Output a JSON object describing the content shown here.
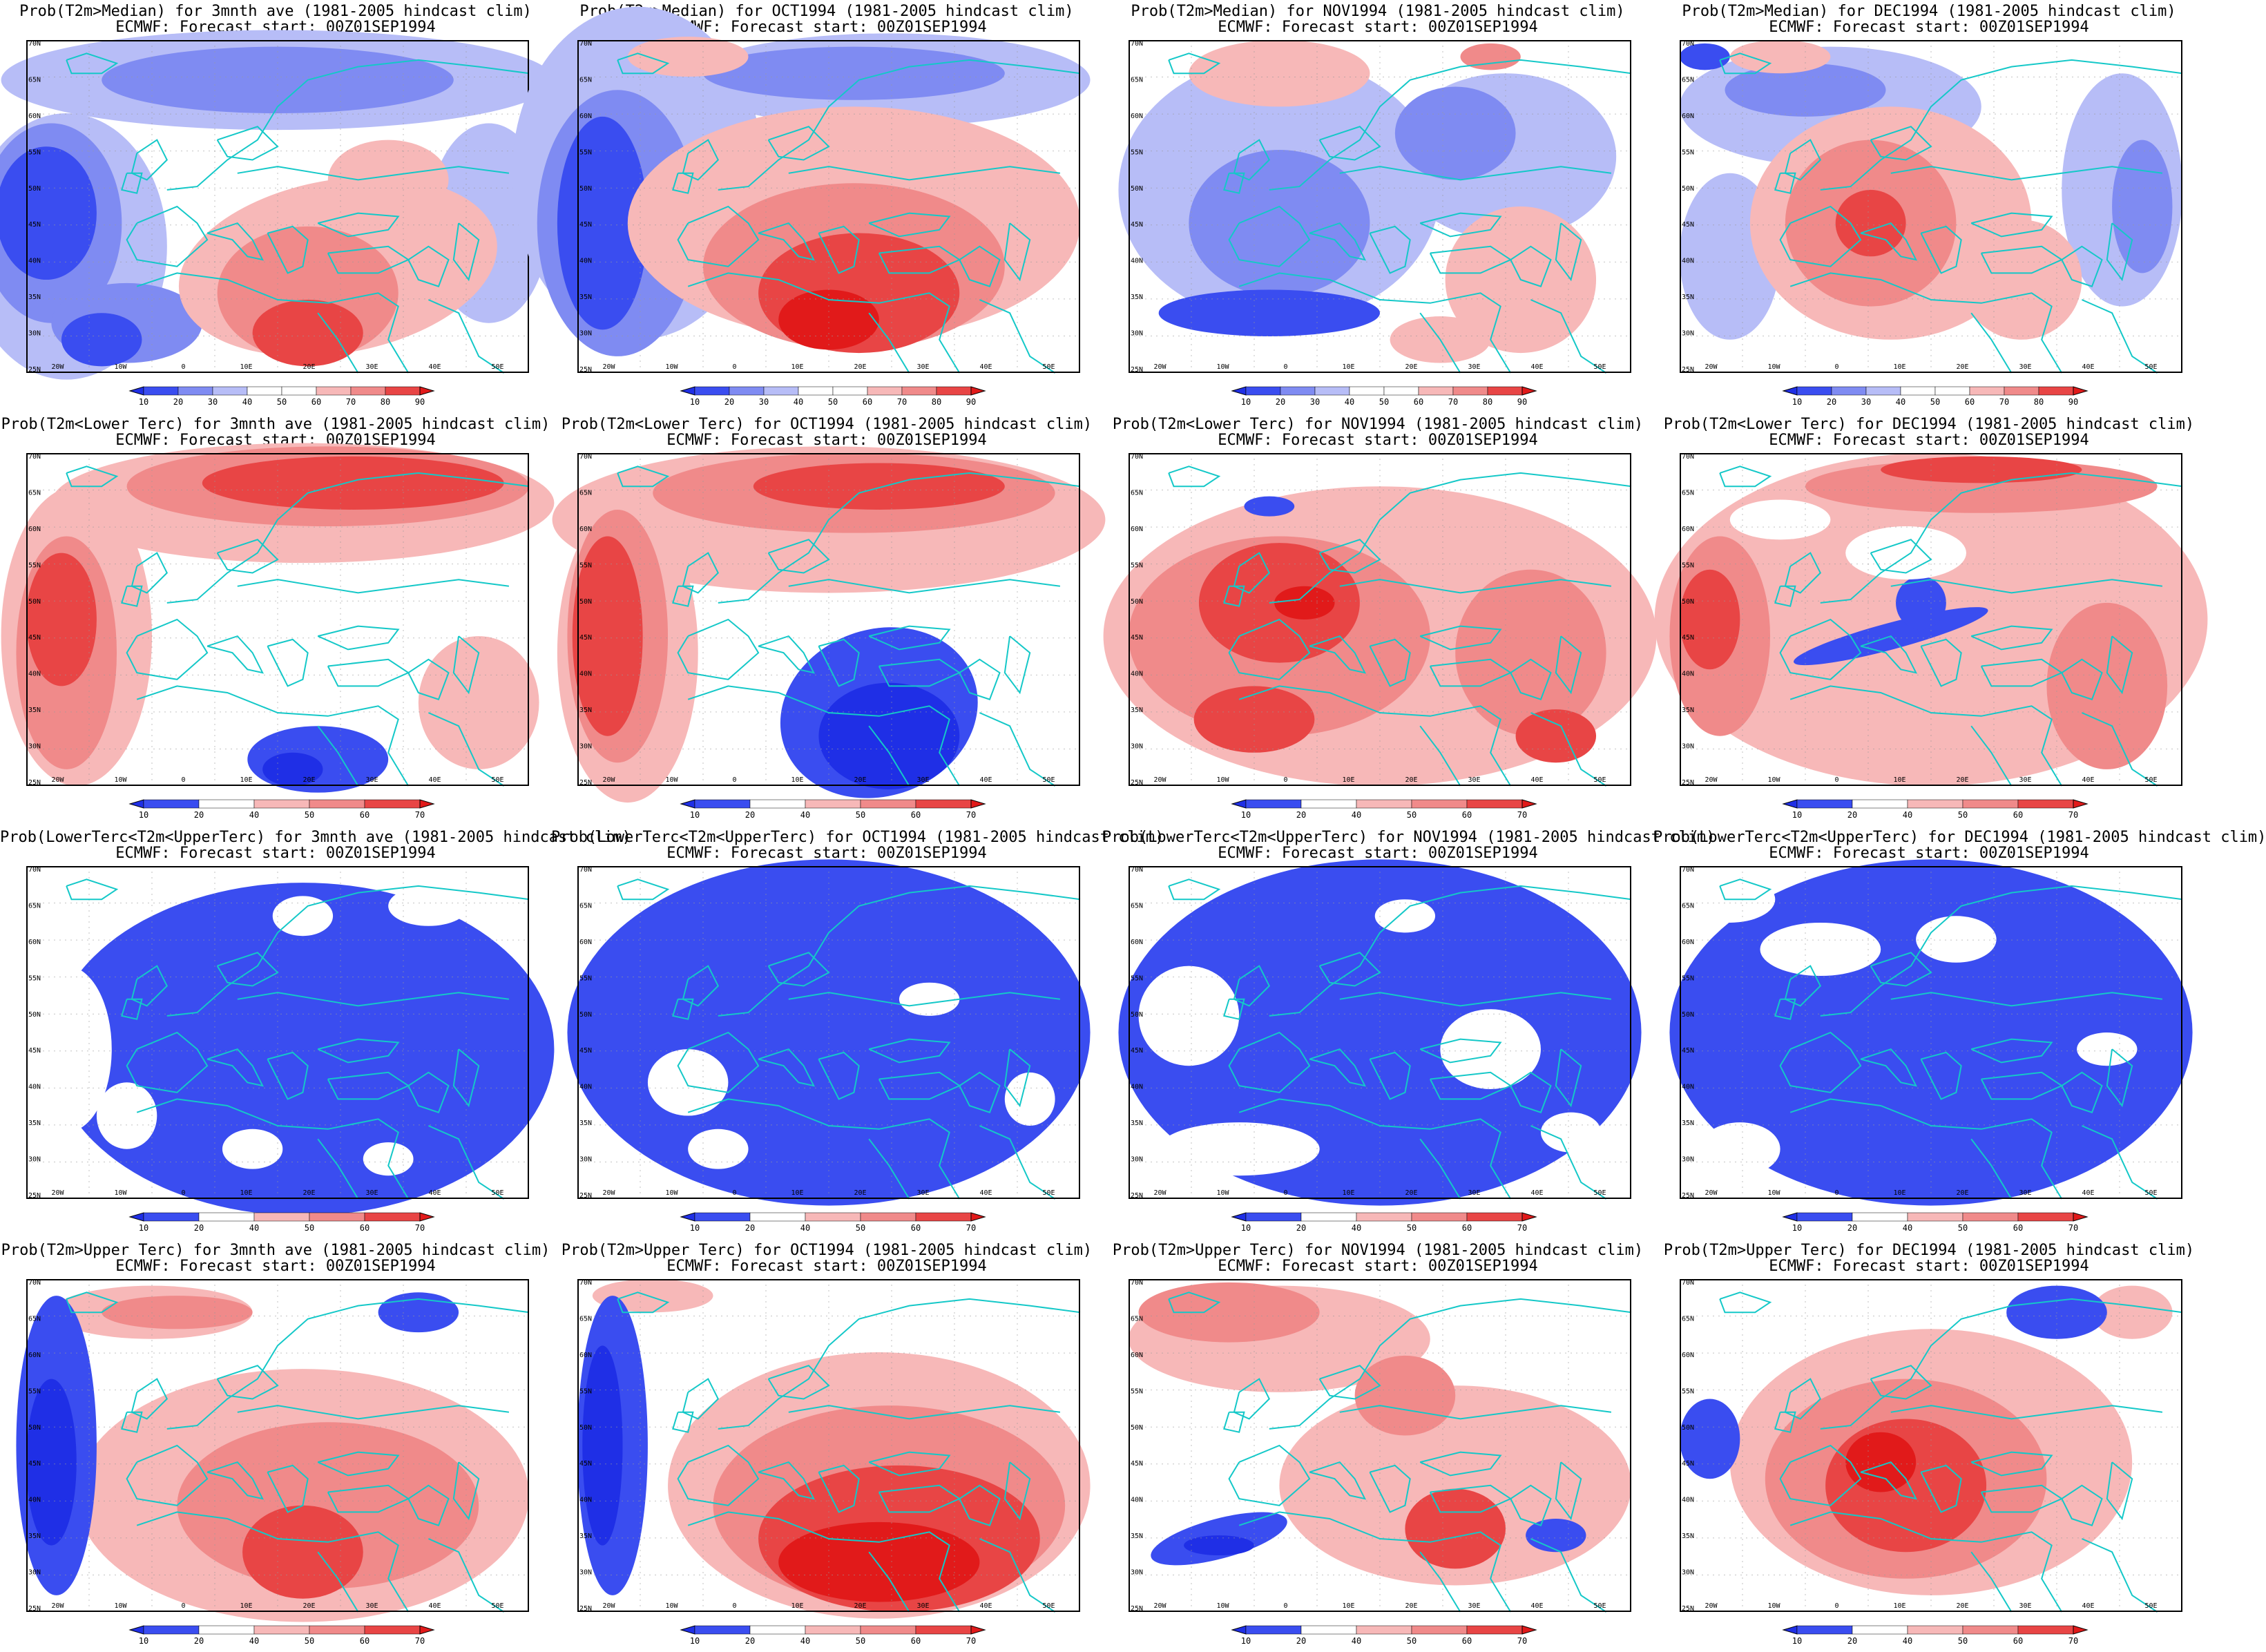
{
  "figure": {
    "colors": {
      "deep_blue": "#1f2fe6",
      "blue": "#3a4df0",
      "mid_blue": "#7f8bf2",
      "light_blue": "#b7bdf7",
      "white": "#ffffff",
      "light_red": "#f7b8b8",
      "mid_red": "#f08a8a",
      "red": "#e84545",
      "deep_red": "#e11a1a",
      "coast": "#14c8c8"
    },
    "map_axes": {
      "lon_labels": [
        "20W",
        "10W",
        "0",
        "10E",
        "20E",
        "30E",
        "40E",
        "50E"
      ],
      "lat_labels": [
        "70N",
        "65N",
        "60N",
        "55N",
        "50N",
        "45N",
        "40N",
        "35N",
        "30N",
        "25N"
      ]
    },
    "scales": {
      "median": {
        "labels": [
          "10",
          "20",
          "30",
          "40",
          "50",
          "60",
          "70",
          "80",
          "90"
        ]
      },
      "tercile": {
        "labels": [
          "10",
          "20",
          "40",
          "50",
          "60",
          "70"
        ]
      }
    }
  },
  "rows": [
    {
      "scale": "median",
      "panels": [
        {
          "title": "Prob(T2m>Median) for 3mnth ave (1981-2005 hindcast clim)",
          "subtitle": "ECMWF: Forecast start: 00Z01SEP1994"
        },
        {
          "title": "Prob(T2m>Median) for OCT1994 (1981-2005 hindcast clim)",
          "subtitle": "ECMWF: Forecast start: 00Z01SEP1994"
        },
        {
          "title": "Prob(T2m>Median) for NOV1994 (1981-2005 hindcast clim)",
          "subtitle": "ECMWF: Forecast start: 00Z01SEP1994"
        },
        {
          "title": "Prob(T2m>Median) for DEC1994 (1981-2005 hindcast clim)",
          "subtitle": "ECMWF: Forecast start: 00Z01SEP1994"
        }
      ]
    },
    {
      "scale": "tercile",
      "panels": [
        {
          "title": "Prob(T2m<Lower Terc) for 3mnth ave (1981-2005 hindcast clim)",
          "subtitle": "ECMWF: Forecast start: 00Z01SEP1994"
        },
        {
          "title": "Prob(T2m<Lower Terc) for OCT1994 (1981-2005 hindcast clim)",
          "subtitle": "ECMWF: Forecast start: 00Z01SEP1994"
        },
        {
          "title": "Prob(T2m<Lower Terc) for NOV1994 (1981-2005 hindcast clim)",
          "subtitle": "ECMWF: Forecast start: 00Z01SEP1994"
        },
        {
          "title": "Prob(T2m<Lower Terc) for DEC1994 (1981-2005 hindcast clim)",
          "subtitle": "ECMWF: Forecast start: 00Z01SEP1994"
        }
      ]
    },
    {
      "scale": "tercile",
      "panels": [
        {
          "title": "Prob(LowerTerc<T2m<UpperTerc) for 3mnth ave (1981-2005 hindcast clim)",
          "subtitle": "ECMWF: Forecast start: 00Z01SEP1994"
        },
        {
          "title": "Prob(LowerTerc<T2m<UpperTerc) for OCT1994 (1981-2005 hindcast clim)",
          "subtitle": "ECMWF: Forecast start: 00Z01SEP1994"
        },
        {
          "title": "Prob(LowerTerc<T2m<UpperTerc) for NOV1994 (1981-2005 hindcast clim)",
          "subtitle": "ECMWF: Forecast start: 00Z01SEP1994"
        },
        {
          "title": "Prob(LowerTerc<T2m<UpperTerc) for DEC1994 (1981-2005 hindcast clim)",
          "subtitle": "ECMWF: Forecast start: 00Z01SEP1994"
        }
      ]
    },
    {
      "scale": "tercile",
      "panels": [
        {
          "title": "Prob(T2m>Upper Terc) for 3mnth ave (1981-2005 hindcast clim)",
          "subtitle": "ECMWF: Forecast start: 00Z01SEP1994"
        },
        {
          "title": "Prob(T2m>Upper Terc) for OCT1994 (1981-2005 hindcast clim)",
          "subtitle": "ECMWF: Forecast start: 00Z01SEP1994"
        },
        {
          "title": "Prob(T2m>Upper Terc) for NOV1994 (1981-2005 hindcast clim)",
          "subtitle": "ECMWF: Forecast start: 00Z01SEP1994"
        },
        {
          "title": "Prob(T2m>Upper Terc) for DEC1994 (1981-2005 hindcast clim)",
          "subtitle": "ECMWF: Forecast start: 00Z01SEP1994"
        }
      ]
    }
  ]
}
